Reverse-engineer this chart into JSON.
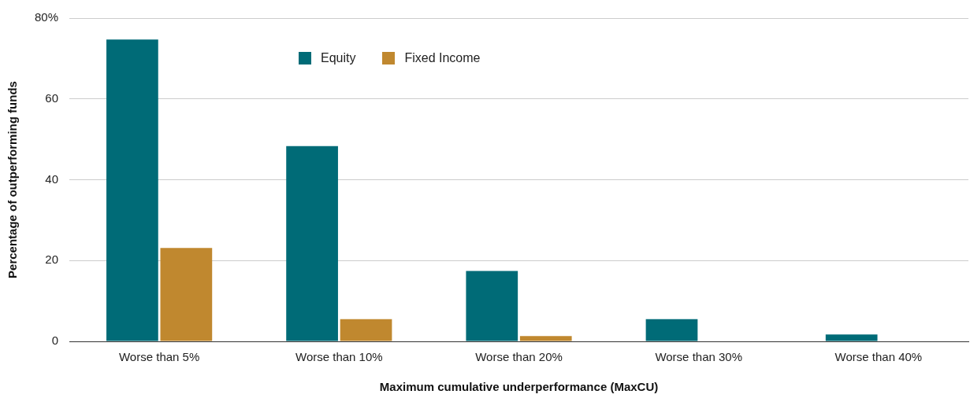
{
  "chart_data": {
    "type": "bar",
    "xlabel": "Maximum cumulative underperformance (MaxCU)",
    "ylabel": "Percentage of outperforming funds",
    "categories": [
      "Worse than 5%",
      "Worse than 10%",
      "Worse than 20%",
      "Worse than 30%",
      "Worse than 40%"
    ],
    "series": [
      {
        "name": "Equity",
        "color": "#006b77",
        "values": [
          74.7,
          48.3,
          17.4,
          5.5,
          1.7
        ]
      },
      {
        "name": "Fixed Income",
        "color": "#c0882f",
        "values": [
          23.1,
          5.5,
          1.3,
          0,
          0
        ]
      }
    ],
    "ylim": [
      0,
      80
    ],
    "yticks": [
      0,
      20,
      40,
      60,
      {
        "value": 80,
        "label": "80%"
      }
    ],
    "grid": "y",
    "legend": "top"
  }
}
